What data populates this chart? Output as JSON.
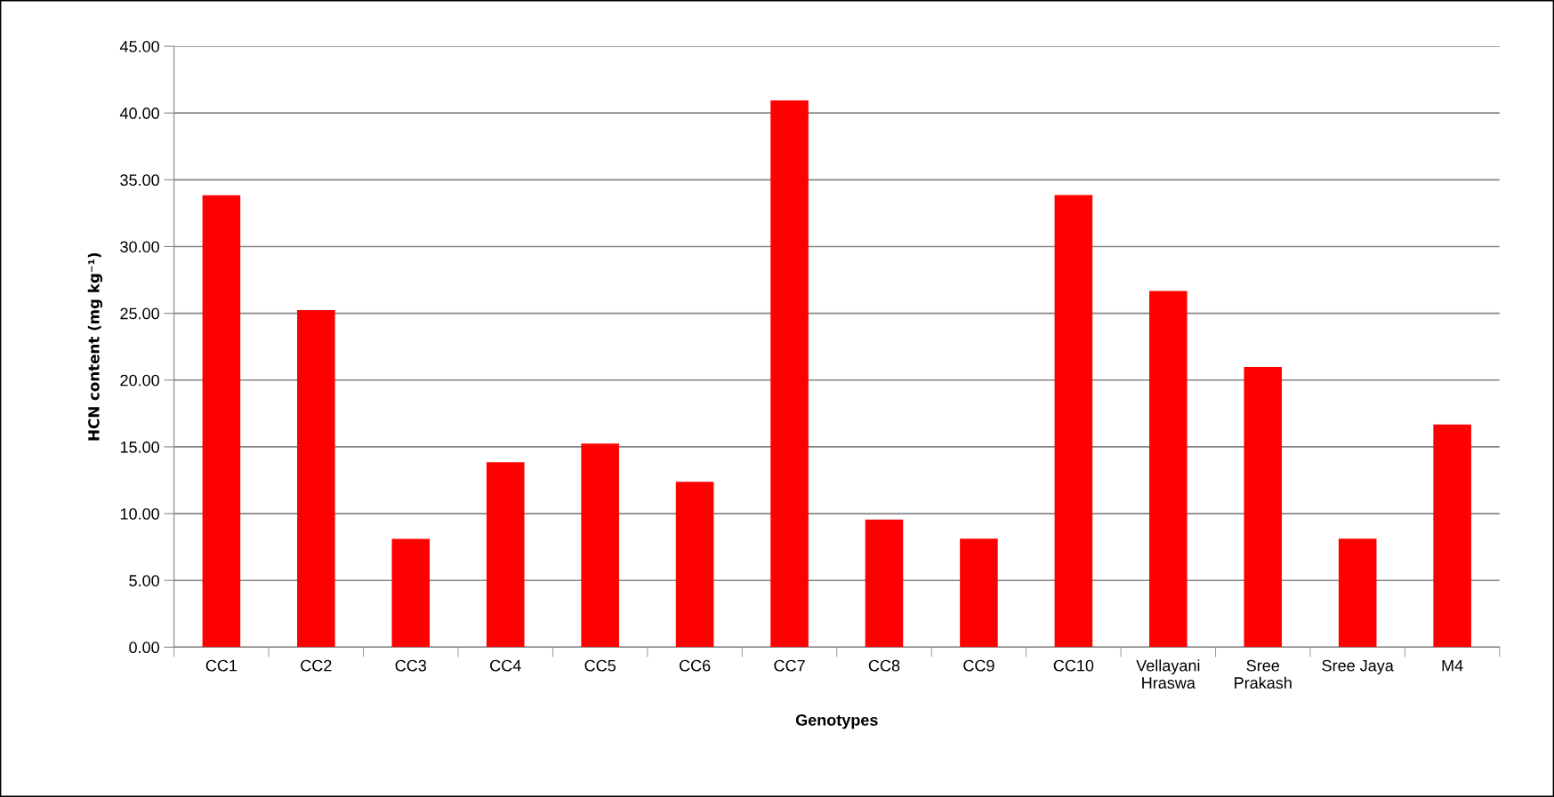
{
  "chart_data": {
    "type": "bar",
    "xlabel": "Genotypes",
    "ylabel": "HCN content (mg kg⁻¹)",
    "categories": [
      "CC1",
      "CC2",
      "CC3",
      "CC4",
      "CC5",
      "CC6",
      "CC7",
      "CC8",
      "CC9",
      "CC10",
      "Vellayani\nHraswa",
      "Sree\nPrakash",
      "Sree Jaya",
      "M4"
    ],
    "values": [
      33.84,
      25.24,
      8.1,
      13.84,
      15.24,
      12.38,
      40.95,
      9.56,
      8.13,
      33.85,
      26.67,
      20.98,
      8.13,
      16.67
    ],
    "color": "#ff0000",
    "ylim": [
      0,
      45
    ],
    "yticks": [
      {
        "value": 0,
        "label": "0.00"
      },
      {
        "value": 5,
        "label": "5.00"
      },
      {
        "value": 10,
        "label": "10.00"
      },
      {
        "value": 15,
        "label": "15.00"
      },
      {
        "value": 20,
        "label": "20.00"
      },
      {
        "value": 25,
        "label": "25.00"
      },
      {
        "value": 30,
        "label": "30.00"
      },
      {
        "value": 35,
        "label": "35.00"
      },
      {
        "value": 40,
        "label": "40.00"
      },
      {
        "value": 45,
        "label": "45.00"
      }
    ],
    "grid": "y",
    "legend": false
  }
}
